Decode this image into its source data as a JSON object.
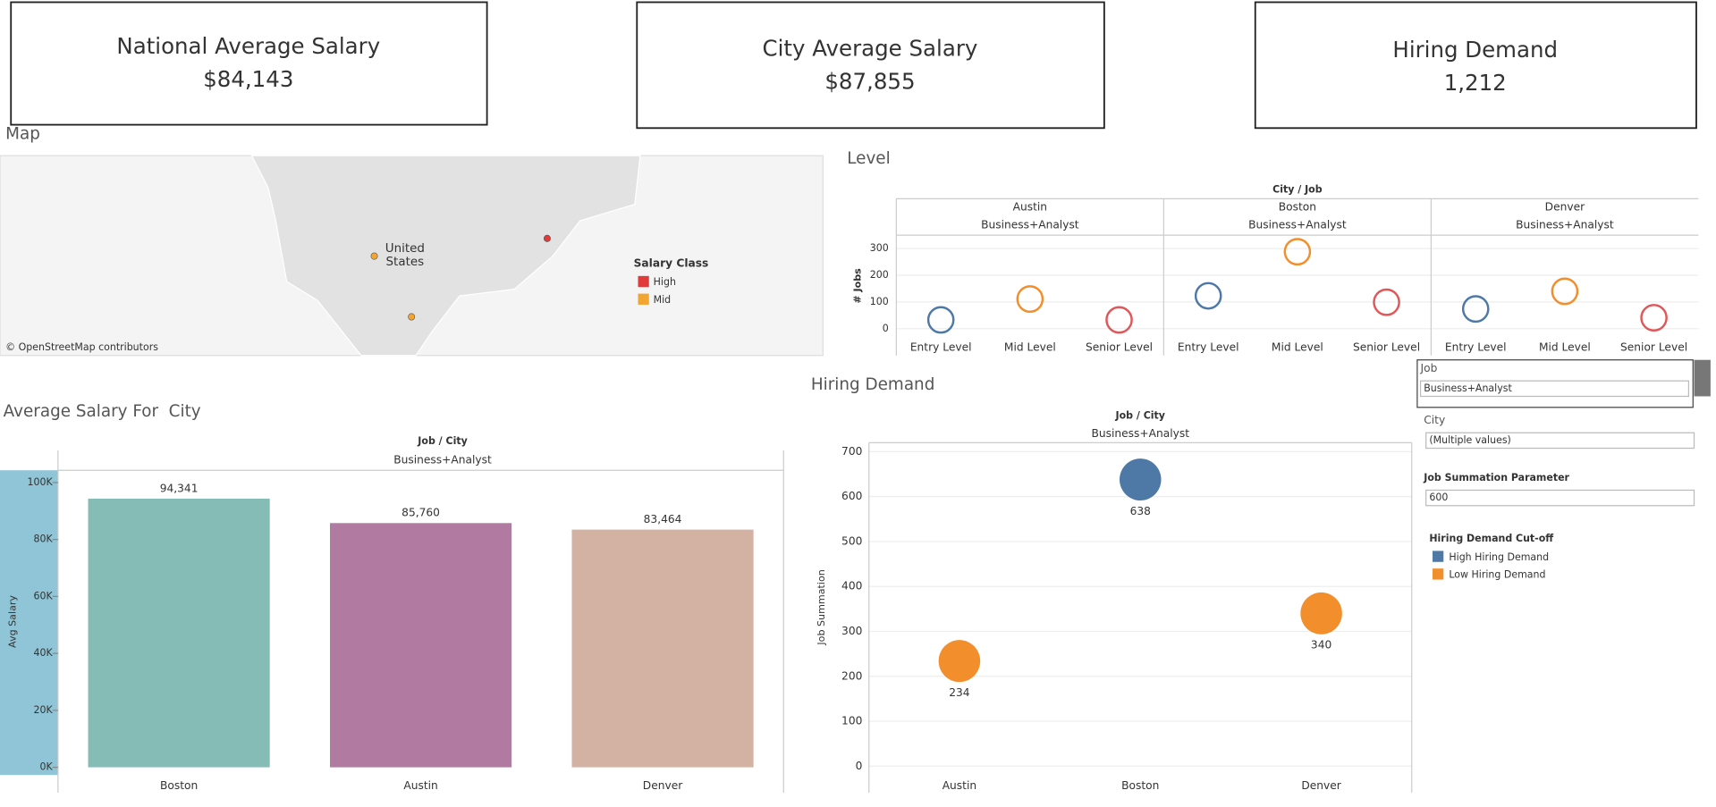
{
  "kpis": [
    {
      "title": "National Average Salary",
      "value": "$84,143"
    },
    {
      "title": "City Average Salary",
      "value": "$87,855"
    },
    {
      "title": "Hiring Demand",
      "value": "1,212"
    }
  ],
  "map": {
    "title": "Map",
    "label_1": "United",
    "label_2": "States",
    "attribution": "© OpenStreetMap contributors",
    "legend_title": "Salary Class",
    "legend": [
      {
        "name": "High",
        "color": "#e03a3a"
      },
      {
        "name": "Mid",
        "color": "#f2a531"
      }
    ]
  },
  "filters": {
    "job": {
      "label": "Job",
      "value": "Business+Analyst"
    },
    "city": {
      "label": "City",
      "value": "(Multiple values)"
    },
    "param": {
      "label": "Job Summation Parameter",
      "value": "600"
    }
  },
  "chart_data": [
    {
      "type": "faceted-scatter",
      "title": "Level",
      "header": "City / Job",
      "y_label": "# Jobs",
      "categories": [
        "Entry Level",
        "Mid Level",
        "Senior Level"
      ],
      "colors": [
        "#4e79a7",
        "#f28e2b",
        "#e15759"
      ],
      "ylim": [
        -30,
        350
      ],
      "yticks": [
        0,
        100,
        200,
        300
      ],
      "panels": [
        {
          "city": "Austin",
          "job": "Business+Analyst",
          "values": [
            33,
            111,
            33
          ]
        },
        {
          "city": "Boston",
          "job": "Business+Analyst",
          "values": [
            123,
            288,
            99
          ]
        },
        {
          "city": "Denver",
          "job": "Business+Analyst",
          "values": [
            74,
            140,
            41
          ]
        }
      ]
    },
    {
      "type": "bar",
      "title": "Average Salary For  City",
      "header": "Job / City",
      "subheader": "Business+Analyst",
      "y_label": "Avg Salary",
      "categories": [
        "Boston",
        "Austin",
        "Denver"
      ],
      "values": [
        94341,
        85760,
        83464
      ],
      "value_labels": [
        "94,341",
        "85,760",
        "83,464"
      ],
      "colors": [
        "#86bcb6",
        "#b07aa1",
        "#d4b2a3"
      ],
      "ylim": [
        -2700,
        104300
      ],
      "yticks": [
        {
          "value": 0,
          "label": "0K"
        },
        {
          "value": 20000,
          "label": "20K"
        },
        {
          "value": 40000,
          "label": "40K"
        },
        {
          "value": 60000,
          "label": "60K"
        },
        {
          "value": 80000,
          "label": "80K"
        },
        {
          "value": 100000,
          "label": "100K"
        }
      ]
    },
    {
      "type": "bubble",
      "title": "Hiring Demand",
      "header": "Job / City",
      "subheader": "Business+Analyst",
      "y_label": "Job Summation",
      "categories": [
        "Austin",
        "Boston",
        "Denver"
      ],
      "legend_title": "Hiring Demand Cut-off",
      "series": [
        {
          "name": "High Hiring Demand",
          "color": "#4e79a7",
          "values": [
            null,
            638,
            null
          ]
        },
        {
          "name": "Low Hiring Demand",
          "color": "#f28e2b",
          "values": [
            234,
            null,
            340
          ]
        }
      ],
      "ylim": [
        -59,
        720
      ],
      "yticks": [
        0,
        100,
        200,
        300,
        400,
        500,
        600,
        700
      ],
      "grid": true
    }
  ]
}
